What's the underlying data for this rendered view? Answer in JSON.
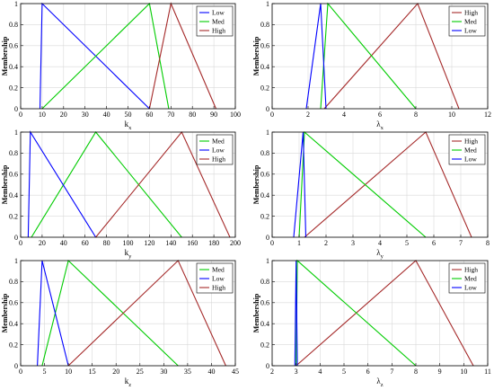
{
  "chart_data": [
    {
      "type": "line",
      "xlabel": "k",
      "xlabel_sub": "x",
      "ylabel": "Membership",
      "xlim": [
        0,
        100
      ],
      "ylim": [
        0,
        1
      ],
      "xticks": [
        "0",
        "10",
        "20",
        "30",
        "40",
        "50",
        "60",
        "70",
        "80",
        "90",
        "100"
      ],
      "yticks": [
        "0",
        "0.2",
        "0.4",
        "0.6",
        "0.8",
        "1"
      ],
      "legend_position": "top-right",
      "series": [
        {
          "name": "Low",
          "color": "#0000ff",
          "x": [
            9,
            10,
            60
          ],
          "y": [
            0,
            1,
            0
          ]
        },
        {
          "name": "Med",
          "color": "#00cc00",
          "x": [
            10,
            60,
            69
          ],
          "y": [
            0,
            1,
            0
          ]
        },
        {
          "name": "High",
          "color": "#a52a2a",
          "x": [
            60,
            70,
            91
          ],
          "y": [
            0,
            1,
            0
          ]
        }
      ]
    },
    {
      "type": "line",
      "xlabel": "λ",
      "xlabel_sub": "x",
      "ylabel": "Membership",
      "xlim": [
        0,
        12
      ],
      "ylim": [
        0,
        1
      ],
      "xticks": [
        "0",
        "2",
        "4",
        "6",
        "8",
        "10",
        "12"
      ],
      "yticks": [
        "0",
        "0.2",
        "0.4",
        "0.6",
        "0.8",
        "1"
      ],
      "legend_position": "top-right",
      "series": [
        {
          "name": "High",
          "color": "#a52a2a",
          "x": [
            2.9,
            8.1,
            10.4
          ],
          "y": [
            0,
            1,
            0
          ]
        },
        {
          "name": "Med",
          "color": "#00cc00",
          "x": [
            2.7,
            3.1,
            8.0
          ],
          "y": [
            0,
            1,
            0
          ]
        },
        {
          "name": "Low",
          "color": "#0000ff",
          "x": [
            1.9,
            2.7,
            3.0
          ],
          "y": [
            0,
            1,
            0
          ]
        }
      ]
    },
    {
      "type": "line",
      "xlabel": "k",
      "xlabel_sub": "y",
      "ylabel": "Membership",
      "xlim": [
        0,
        200
      ],
      "ylim": [
        0,
        1
      ],
      "xticks": [
        "0",
        "20",
        "40",
        "60",
        "80",
        "100",
        "120",
        "140",
        "160",
        "180",
        "200"
      ],
      "yticks": [
        "0",
        "0.2",
        "0.4",
        "0.6",
        "0.8",
        "1"
      ],
      "legend_position": "top-right",
      "series": [
        {
          "name": "Med",
          "color": "#00cc00",
          "x": [
            10,
            70,
            150
          ],
          "y": [
            0,
            1,
            0
          ]
        },
        {
          "name": "Low",
          "color": "#0000ff",
          "x": [
            7,
            9,
            70
          ],
          "y": [
            0,
            1,
            0
          ]
        },
        {
          "name": "High",
          "color": "#a52a2a",
          "x": [
            70,
            150,
            195
          ],
          "y": [
            0,
            1,
            0
          ]
        }
      ]
    },
    {
      "type": "line",
      "xlabel": "λ",
      "xlabel_sub": "y",
      "ylabel": "Membership",
      "xlim": [
        0,
        8
      ],
      "ylim": [
        0,
        1
      ],
      "xticks": [
        "0",
        "1",
        "2",
        "3",
        "4",
        "5",
        "6",
        "7",
        "8"
      ],
      "yticks": [
        "0",
        "0.2",
        "0.4",
        "0.6",
        "0.8",
        "1"
      ],
      "legend_position": "top-right",
      "series": [
        {
          "name": "High",
          "color": "#a52a2a",
          "x": [
            1.2,
            5.7,
            7.4
          ],
          "y": [
            0,
            1,
            0
          ]
        },
        {
          "name": "Med",
          "color": "#00cc00",
          "x": [
            1.0,
            1.2,
            5.7
          ],
          "y": [
            0,
            1,
            0
          ]
        },
        {
          "name": "Low",
          "color": "#0000ff",
          "x": [
            0.8,
            1.15,
            1.25
          ],
          "y": [
            0,
            1,
            0
          ]
        }
      ]
    },
    {
      "type": "line",
      "xlabel": "k",
      "xlabel_sub": "z",
      "ylabel": "Membership",
      "xlim": [
        0,
        45
      ],
      "ylim": [
        0,
        1
      ],
      "xticks": [
        "0",
        "5",
        "10",
        "15",
        "20",
        "25",
        "30",
        "35",
        "40",
        "45"
      ],
      "yticks": [
        "0",
        "0.2",
        "0.4",
        "0.6",
        "0.8",
        "1"
      ],
      "legend_position": "top-right",
      "series": [
        {
          "name": "Med",
          "color": "#00cc00",
          "x": [
            4.5,
            10,
            33
          ],
          "y": [
            0,
            1,
            0
          ]
        },
        {
          "name": "Low",
          "color": "#0000ff",
          "x": [
            3.5,
            4.5,
            10
          ],
          "y": [
            0,
            1,
            0
          ]
        },
        {
          "name": "High",
          "color": "#a52a2a",
          "x": [
            10,
            33,
            43
          ],
          "y": [
            0,
            1,
            0
          ]
        }
      ]
    },
    {
      "type": "line",
      "xlabel": "λ",
      "xlabel_sub": "z",
      "ylabel": "Membership",
      "xlim": [
        2,
        11
      ],
      "ylim": [
        0,
        1
      ],
      "xticks": [
        "2",
        "3",
        "4",
        "5",
        "6",
        "7",
        "8",
        "9",
        "10",
        "11"
      ],
      "yticks": [
        "0",
        "0.2",
        "0.4",
        "0.6",
        "0.8",
        "1"
      ],
      "legend_position": "top-right",
      "series": [
        {
          "name": "High",
          "color": "#a52a2a",
          "x": [
            3,
            8,
            10.4
          ],
          "y": [
            0,
            1,
            0
          ]
        },
        {
          "name": "Med",
          "color": "#00cc00",
          "x": [
            3,
            3.05,
            8
          ],
          "y": [
            0,
            1,
            0
          ]
        },
        {
          "name": "Low",
          "color": "#0000ff",
          "x": [
            2.95,
            3,
            3.05
          ],
          "y": [
            0,
            1,
            0
          ]
        }
      ]
    }
  ]
}
